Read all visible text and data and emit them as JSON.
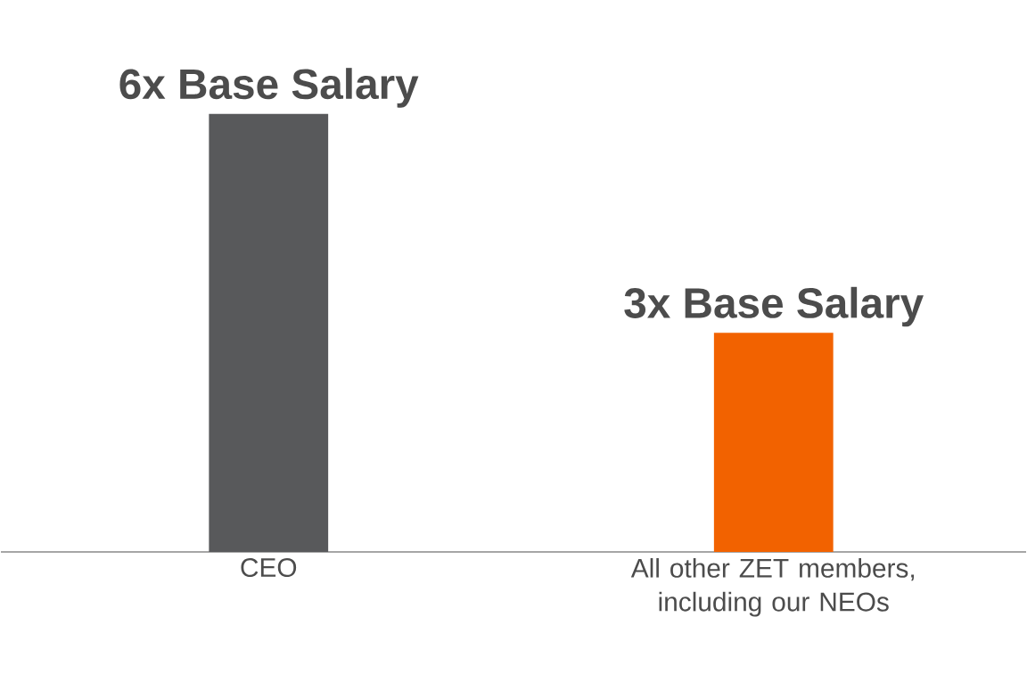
{
  "chart_data": {
    "type": "bar",
    "categories": [
      "CEO",
      "All other ZET members, including our NEOs"
    ],
    "values": [
      6,
      3
    ],
    "colors": [
      "#58595b",
      "#f26200"
    ],
    "value_labels": [
      "6x Base Salary",
      "3x Base Salary"
    ]
  }
}
